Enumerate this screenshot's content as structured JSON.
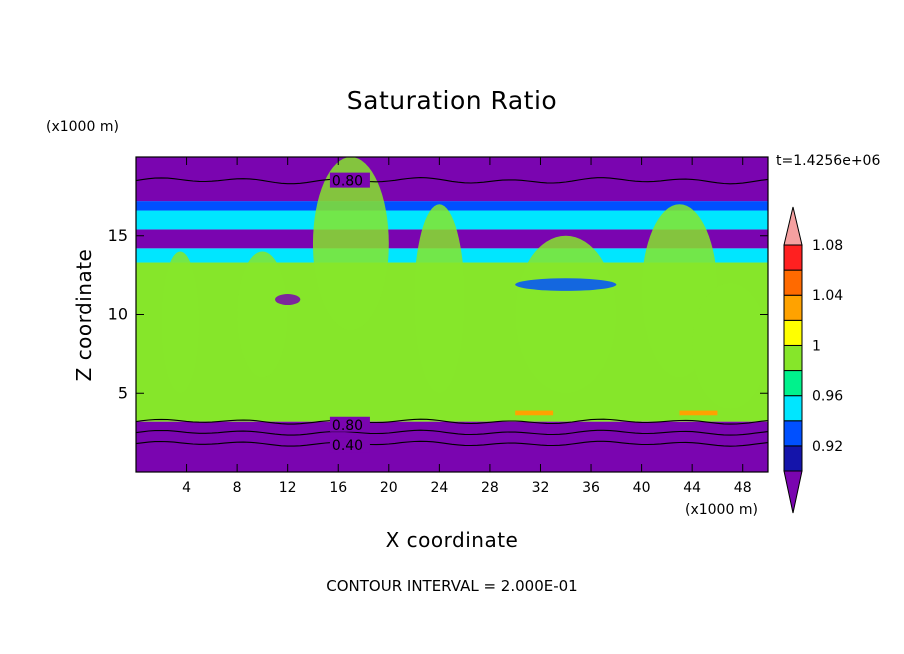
{
  "chart_data": {
    "type": "heatmap",
    "title": "Saturation Ratio",
    "xlabel": "X coordinate",
    "ylabel": "Z coordinate",
    "x_units": "(x1000 m)",
    "y_units": "(x1000 m)",
    "time_label": "t=1.4256e+06",
    "footer": "CONTOUR INTERVAL = 2.000E-01",
    "xlim": [
      0,
      50
    ],
    "ylim": [
      0,
      20
    ],
    "x_ticks": [
      "4",
      "8",
      "12",
      "16",
      "20",
      "24",
      "28",
      "32",
      "36",
      "40",
      "44",
      "48"
    ],
    "y_ticks": [
      "5",
      "10",
      "15"
    ],
    "contour_labels": [
      "0.80",
      "0.80",
      "0.40"
    ],
    "colorbar": {
      "labels": [
        "0.92",
        "0.96",
        "1",
        "1.04",
        "1.08"
      ],
      "levels": [
        0.9,
        0.92,
        0.94,
        0.96,
        0.98,
        1.0,
        1.02,
        1.04,
        1.06,
        1.08,
        1.1
      ],
      "colors": [
        "#7a05b0",
        "#1414aa",
        "#0050ff",
        "#00e6ff",
        "#00f28c",
        "#86e62a",
        "#ffff00",
        "#ffa200",
        "#ff6a00",
        "#ff2020",
        "#f5a0a0"
      ]
    },
    "bands": [
      {
        "z0": 0,
        "z1": 3.2,
        "value": 0.4
      },
      {
        "z0": 3.2,
        "z1": 13.3,
        "value": 1.0
      },
      {
        "z0": 13.3,
        "z1": 14.2,
        "value": 0.97
      },
      {
        "z0": 14.2,
        "z1": 15.4,
        "value": 0.9
      },
      {
        "z0": 15.4,
        "z1": 16.6,
        "value": 0.97
      },
      {
        "z0": 16.6,
        "z1": 17.2,
        "value": 0.95
      },
      {
        "z0": 17.2,
        "z1": 20,
        "value": 0.8
      }
    ]
  }
}
